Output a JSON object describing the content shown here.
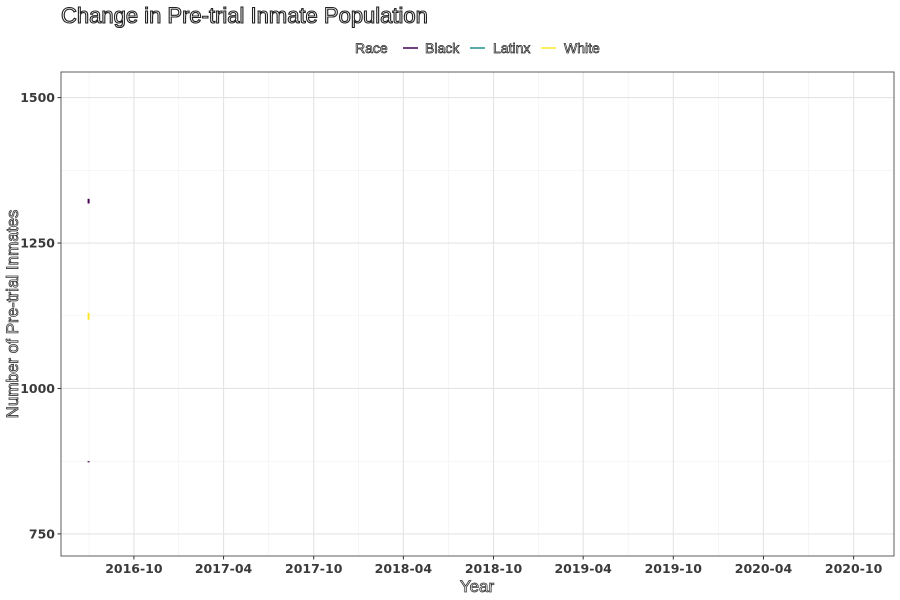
{
  "chart_data": {
    "type": "line",
    "title": "Change in Pre-trial Inmate Population",
    "xlabel": "Year",
    "ylabel": "Number of Pre-trial Inmates",
    "xlim": [
      "2016-05-06",
      "2020-12-22"
    ],
    "ylim": [
      712,
      1544
    ],
    "x_ticks": [
      "2016-10",
      "2017-04",
      "2017-10",
      "2018-04",
      "2018-10",
      "2019-04",
      "2019-10",
      "2020-04",
      "2020-10"
    ],
    "y_ticks": [
      750,
      1000,
      1250,
      1500
    ],
    "grid": true,
    "legend": {
      "title": "Race",
      "position": "top"
    },
    "series": [
      {
        "name": "Black",
        "color": "#440154",
        "points": [
          {
            "x": "2016-07-01",
            "y": 1326
          },
          {
            "x": "2016-07-01",
            "y": 1318
          },
          {
            "x": "2016-07-01",
            "y": 875
          },
          {
            "x": "2016-07-01",
            "y": 873
          }
        ]
      },
      {
        "name": "Latinx",
        "color": "#21908C",
        "points": []
      },
      {
        "name": "White",
        "color": "#FDE725",
        "points": [
          {
            "x": "2016-07-01",
            "y": 1130
          },
          {
            "x": "2016-07-01",
            "y": 1118
          }
        ]
      }
    ]
  }
}
